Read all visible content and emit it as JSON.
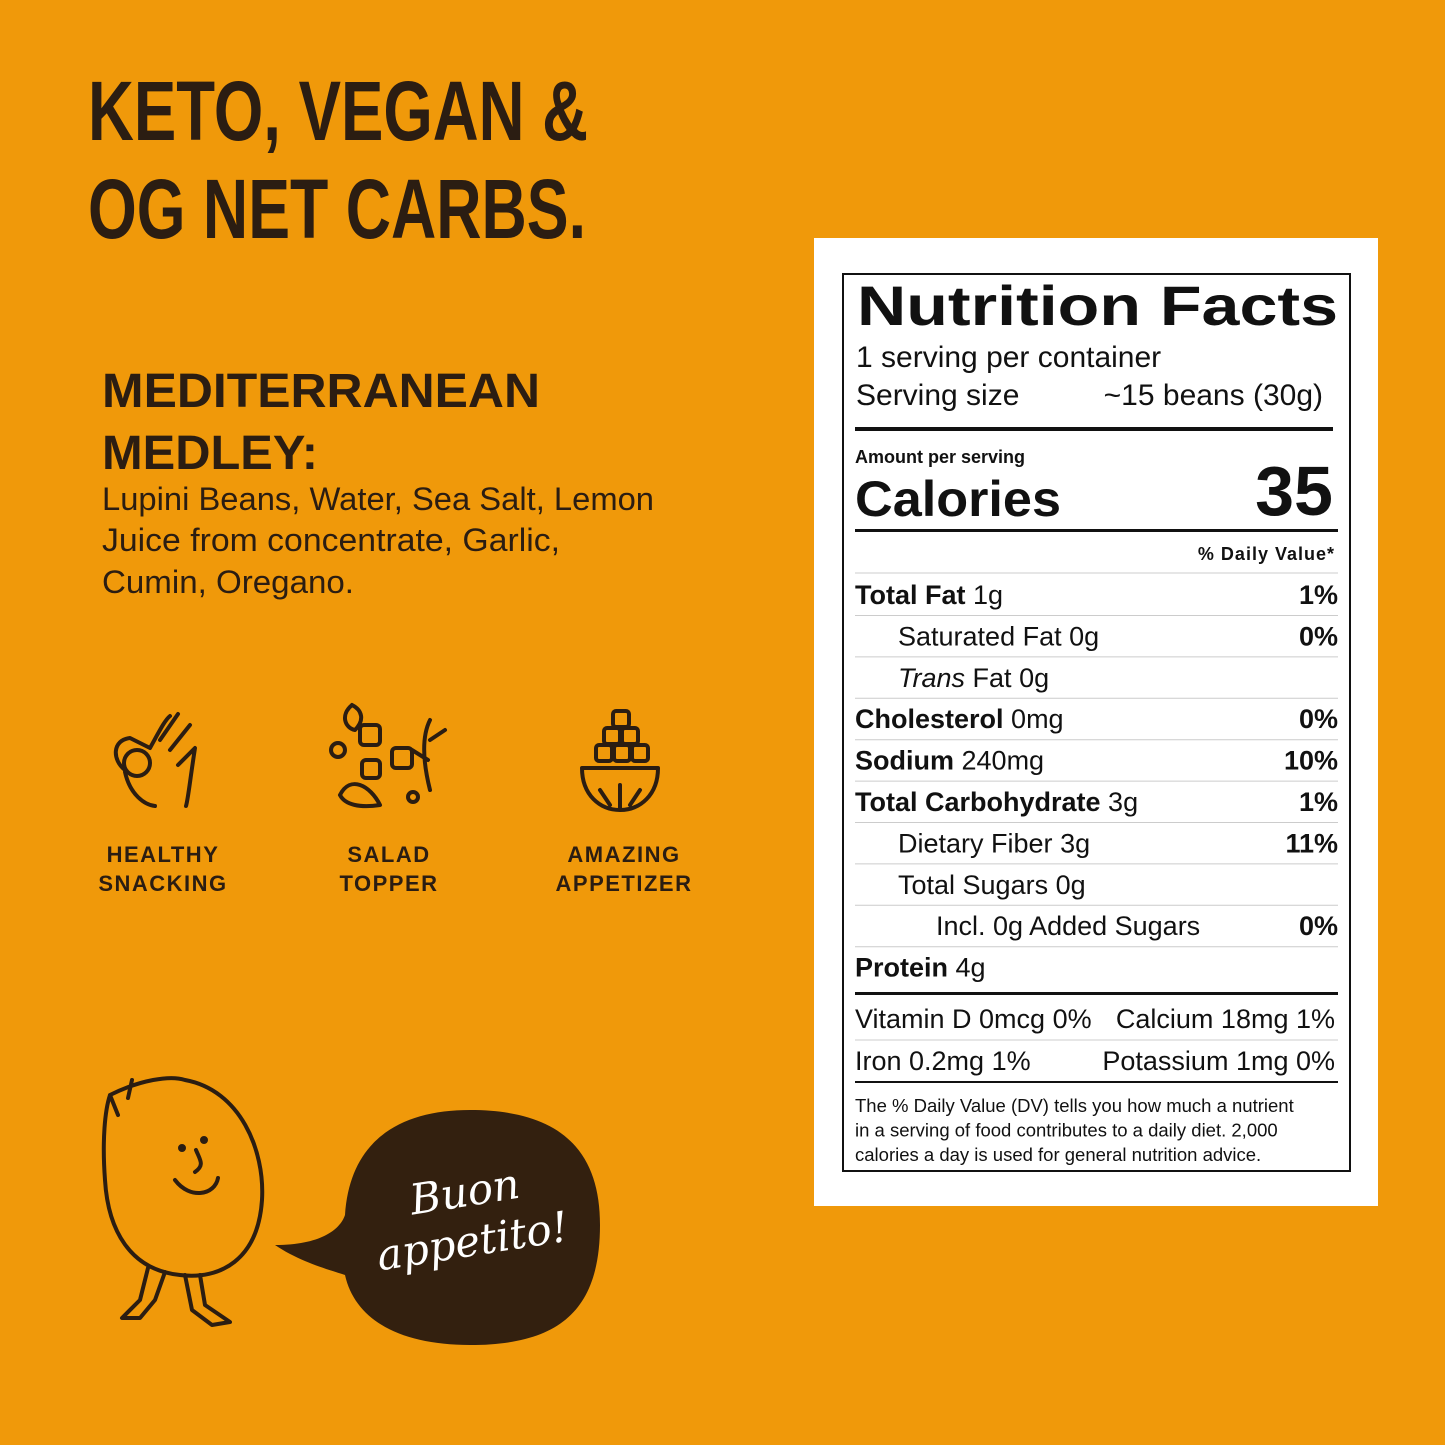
{
  "headline": [
    "KETO, VEGAN &",
    "OG NET CARBS."
  ],
  "ingredients": {
    "title": [
      "MEDITERRANEAN",
      "MEDLEY:"
    ],
    "text": [
      "Lupini Beans, Water, Sea Salt, Lemon",
      "Juice from concentrate, Garlic,",
      "Cumin, Oregano."
    ]
  },
  "uses": [
    {
      "label": [
        "HEALTHY",
        "SNACKING"
      ]
    },
    {
      "label": [
        "SALAD",
        "TOPPER"
      ]
    },
    {
      "label": [
        "AMAZING",
        "APPETIZER"
      ]
    }
  ],
  "speech": [
    "Buon",
    "appetito!"
  ],
  "nutrition": {
    "title": "Nutrition Facts",
    "servings": "1 serving per container",
    "serving_size_label": "Serving size",
    "serving_size_value": "~15 beans (30g)",
    "amount_label": "Amount per serving",
    "calories_label": "Calories",
    "calories_value": "35",
    "dv_header": "% Daily Value*",
    "rows": [
      {
        "name": "Total Fat",
        "amount": "1g",
        "dv": "1%",
        "bold": true,
        "indent": 0
      },
      {
        "name": "Saturated Fat",
        "amount": "0g",
        "dv": "0%",
        "bold": false,
        "indent": 1
      },
      {
        "italic": "Trans",
        "name": "Fat",
        "amount": "0g",
        "bold": false,
        "indent": 1
      },
      {
        "name": "Cholesterol",
        "amount": "0mg",
        "dv": "0%",
        "bold": true,
        "indent": 0
      },
      {
        "name": "Sodium",
        "amount": "240mg",
        "dv": "10%",
        "bold": true,
        "indent": 0
      },
      {
        "name": "Total Carbohydrate",
        "amount": "3g",
        "dv": "1%",
        "bold": true,
        "indent": 0
      },
      {
        "name": "Dietary Fiber",
        "amount": "3g",
        "dv": "11%",
        "bold": false,
        "indent": 1
      },
      {
        "name": "Total Sugars",
        "amount": "0g",
        "bold": false,
        "indent": 1
      },
      {
        "name": "Incl. 0g Added Sugars",
        "dv": "0%",
        "bold": false,
        "indent": 2
      },
      {
        "name": "Protein",
        "amount": "4g",
        "bold": true,
        "indent": 0
      }
    ],
    "micros": [
      [
        "Vitamin D 0mcg 0%",
        "Calcium 18mg 1%"
      ],
      [
        "Iron 0.2mg 1%",
        "Potassium 1mg 0%"
      ]
    ],
    "footnote": [
      "The % Daily Value (DV) tells you how much a nutrient",
      "in a serving of food contributes to a daily diet. 2,000",
      "calories a day is used for general nutrition advice."
    ]
  }
}
